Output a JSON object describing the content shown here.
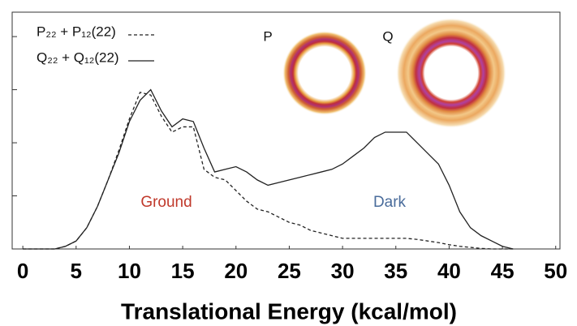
{
  "chart_data": {
    "type": "line",
    "x_label": "Translational Energy (kcal/mol)",
    "x": [
      0,
      1,
      2,
      3,
      4,
      5,
      6,
      7,
      8,
      9,
      10,
      11,
      12,
      13,
      14,
      15,
      16,
      17,
      18,
      19,
      20,
      21,
      22,
      23,
      24,
      25,
      26,
      27,
      28,
      29,
      30,
      31,
      32,
      33,
      34,
      35,
      36,
      37,
      38,
      39,
      40,
      41,
      42,
      43,
      44,
      45,
      46
    ],
    "series": [
      {
        "name": "P₂₂ + P₁₂(22)",
        "color": "#222222",
        "style": "dashed",
        "values": [
          0,
          0,
          0,
          0,
          0.05,
          0.15,
          0.4,
          0.8,
          1.3,
          1.85,
          2.45,
          2.95,
          2.9,
          2.5,
          2.2,
          2.3,
          2.3,
          1.5,
          1.35,
          1.3,
          1.1,
          0.9,
          0.75,
          0.7,
          0.6,
          0.5,
          0.45,
          0.35,
          0.3,
          0.25,
          0.2,
          0.2,
          0.2,
          0.2,
          0.2,
          0.2,
          0.2,
          0.18,
          0.15,
          0.12,
          0.08,
          0.05,
          0.03,
          0.01,
          0,
          0,
          0
        ]
      },
      {
        "name": "Q₂₂ + Q₁₂(22)",
        "color": "#222222",
        "style": "solid",
        "values": [
          0,
          0,
          0,
          0,
          0.05,
          0.15,
          0.4,
          0.8,
          1.3,
          1.8,
          2.4,
          2.8,
          3.0,
          2.6,
          2.3,
          2.45,
          2.4,
          1.9,
          1.45,
          1.5,
          1.55,
          1.45,
          1.3,
          1.2,
          1.25,
          1.3,
          1.35,
          1.4,
          1.45,
          1.5,
          1.6,
          1.75,
          1.9,
          2.1,
          2.2,
          2.2,
          2.2,
          2.0,
          1.8,
          1.6,
          1.2,
          0.7,
          0.4,
          0.25,
          0.15,
          0.05,
          0
        ]
      }
    ],
    "annotations": [
      {
        "text": "Ground",
        "color": "#c0392b"
      },
      {
        "text": "Dark",
        "color": "#4a6c9b"
      },
      {
        "text": "P",
        "color": "#111111"
      },
      {
        "text": "Q",
        "color": "#111111"
      }
    ],
    "xlim": [
      -1,
      50.4
    ],
    "xticks": [
      0,
      5,
      10,
      15,
      20,
      25,
      30,
      35,
      40,
      45,
      50
    ],
    "ylim": [
      0,
      4.46
    ],
    "yticks": [
      0,
      1,
      2,
      3,
      4
    ]
  }
}
